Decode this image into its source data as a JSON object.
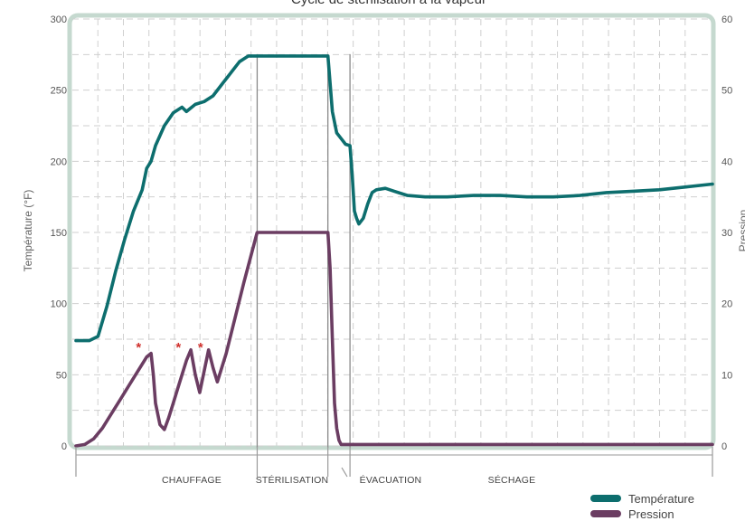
{
  "chart_data": {
    "type": "line",
    "title": "Cycle de stérilisation à la vapeur",
    "ylabel_left": "Température (°F)",
    "ylabel_right": "Pression",
    "ylim_left": [
      0,
      300
    ],
    "ylim_right": [
      0,
      60
    ],
    "yticks_left": [
      "0",
      "50",
      "100",
      "150",
      "200",
      "250",
      "300"
    ],
    "yticks_right": [
      "0",
      "10",
      "20",
      "30",
      "40",
      "50",
      "60"
    ],
    "grid": true,
    "legend_position": "bottom-right",
    "phases": [
      {
        "label": "CHAUFFAGE",
        "start": 0,
        "end": 41
      },
      {
        "label": "STÉRILISATION",
        "start": 41,
        "end": 57
      },
      {
        "label": "ÉVACUATION",
        "start": 57,
        "end": 62
      },
      {
        "label": "SÉCHAGE",
        "start": 62,
        "end": 144
      }
    ],
    "markers": [
      {
        "label": "*",
        "x": 15,
        "y": 68
      },
      {
        "label": "*",
        "x": 24,
        "y": 68
      },
      {
        "label": "*",
        "x": 29,
        "y": 68
      }
    ],
    "series": [
      {
        "name": "Température",
        "color": "#0d6e6e",
        "axis": "left",
        "x": [
          0,
          3,
          5,
          7,
          9,
          11,
          13,
          15,
          16,
          17,
          18,
          19,
          20,
          22,
          24,
          25,
          27,
          29,
          31,
          33,
          35,
          37,
          39,
          41,
          45,
          49,
          53,
          57,
          57.5,
          58,
          59,
          60,
          61,
          62,
          62.5,
          63,
          63.5,
          64,
          65,
          66,
          67,
          68,
          70,
          72,
          75,
          79,
          84,
          90,
          96,
          102,
          108,
          114,
          120,
          126,
          132,
          138,
          144
        ],
        "values": [
          74,
          74,
          77,
          98,
          123,
          145,
          165,
          180,
          195,
          200,
          211,
          218,
          225,
          234,
          238,
          235,
          240,
          242,
          246,
          254,
          262,
          270,
          274,
          274,
          274,
          274,
          274,
          274,
          255,
          235,
          220,
          216,
          212,
          211,
          190,
          165,
          160,
          156,
          160,
          170,
          178,
          180,
          181,
          179,
          176,
          175,
          175,
          176,
          176,
          175,
          175,
          176,
          178,
          179,
          180,
          182,
          184
        ]
      },
      {
        "name": "Pression",
        "color": "#6b3d62",
        "axis": "right",
        "x": [
          0,
          2,
          4,
          6,
          8,
          10,
          12,
          14,
          16,
          17,
          17.5,
          18,
          19,
          20,
          21,
          22,
          23,
          24,
          25,
          26,
          27,
          28,
          29,
          30,
          31,
          32,
          34,
          36,
          38,
          41,
          45,
          49,
          53,
          57,
          57.5,
          58,
          58.5,
          59,
          59.5,
          60,
          62,
          70,
          80,
          90,
          100,
          110,
          120,
          130,
          144
        ],
        "values": [
          0,
          0.2,
          1,
          2.5,
          4.5,
          6.5,
          8.5,
          10.5,
          12.5,
          13,
          10,
          6,
          3,
          2.3,
          4,
          6,
          8,
          10,
          12,
          13.5,
          10,
          7.5,
          10.5,
          13.5,
          11,
          9,
          13,
          18,
          23,
          30,
          30,
          30,
          30,
          30,
          25,
          15,
          6,
          2.5,
          0.8,
          0.2,
          0.2,
          0.2,
          0.2,
          0.2,
          0.2,
          0.2,
          0.2,
          0.2,
          0.2
        ]
      }
    ],
    "legend": [
      {
        "label": "Température",
        "color": "#0d6e6e"
      },
      {
        "label": "Pression",
        "color": "#6b3d62"
      }
    ]
  }
}
